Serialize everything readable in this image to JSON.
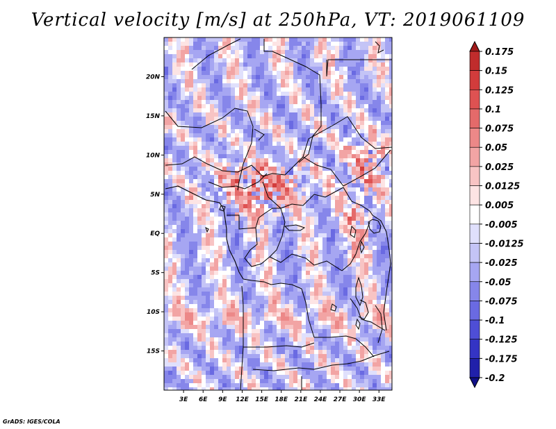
{
  "title": "Vertical velocity [m/s] at 250hPa, VT: 2019061109",
  "credit": "GrADS: IGES/COLA",
  "chart_data": {
    "type": "heatmap",
    "variable": "Vertical velocity",
    "units": "m/s",
    "level": "250hPa",
    "valid_time": "2019061109",
    "lon_range": [
      0,
      35
    ],
    "lat_range": [
      -20,
      25
    ],
    "x_ticks": [
      "3E",
      "6E",
      "9E",
      "12E",
      "15E",
      "18E",
      "21E",
      "24E",
      "27E",
      "30E",
      "33E"
    ],
    "x_tick_values": [
      3,
      6,
      9,
      12,
      15,
      18,
      21,
      24,
      27,
      30,
      33
    ],
    "y_ticks": [
      "20N",
      "15N",
      "10N",
      "5N",
      "EQ",
      "5S",
      "10S",
      "15S"
    ],
    "y_tick_values": [
      20,
      15,
      10,
      5,
      0,
      -5,
      -10,
      -15
    ],
    "colorbar": {
      "orientation": "vertical",
      "placement": "right",
      "labels": [
        "0.175",
        "0.15",
        "0.125",
        "0.1",
        "0.075",
        "0.05",
        "0.025",
        "0.0125",
        "0.005",
        "-0.005",
        "-0.0125",
        "-0.025",
        "-0.05",
        "-0.075",
        "-0.1",
        "-0.125",
        "-0.175",
        "-0.2"
      ],
      "colors": [
        "#a01a1a",
        "#c02c2c",
        "#d23c3c",
        "#de5252",
        "#e46a6a",
        "#ec8888",
        "#f2a4a4",
        "#f8c4c4",
        "#fde4e4",
        "#ffffff",
        "#e0e0fc",
        "#c4c4f6",
        "#a6a6f2",
        "#8686ea",
        "#6a6ae2",
        "#4e4ed6",
        "#3434c4",
        "#2020aa",
        "#101088"
      ]
    },
    "features": [
      "coastlines",
      "country borders",
      "lakes"
    ]
  }
}
